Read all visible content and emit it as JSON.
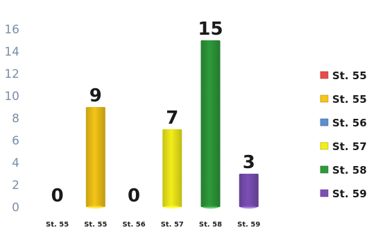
{
  "chart_data": {
    "type": "bar",
    "categories": [
      "St. 55",
      "St. 55",
      "St. 56",
      "St. 57",
      "St. 58",
      "St. 59"
    ],
    "values": [
      0,
      9,
      0,
      7,
      15,
      3
    ],
    "data_labels": [
      "0",
      "9",
      "0",
      "7",
      "15",
      "3"
    ],
    "colors": [
      "#e84a4a",
      "#f5c518",
      "#5a8fd0",
      "#f3ee1a",
      "#2e9a3a",
      "#7b4fb5"
    ],
    "ylim": [
      0,
      16
    ],
    "yticks": [
      0,
      2,
      4,
      6,
      8,
      10,
      12,
      14,
      16
    ],
    "grid": false,
    "legend_position": "right",
    "legend": [
      "St. 55",
      "St. 55",
      "St. 56",
      "St. 57",
      "St. 58",
      "St. 59"
    ]
  }
}
